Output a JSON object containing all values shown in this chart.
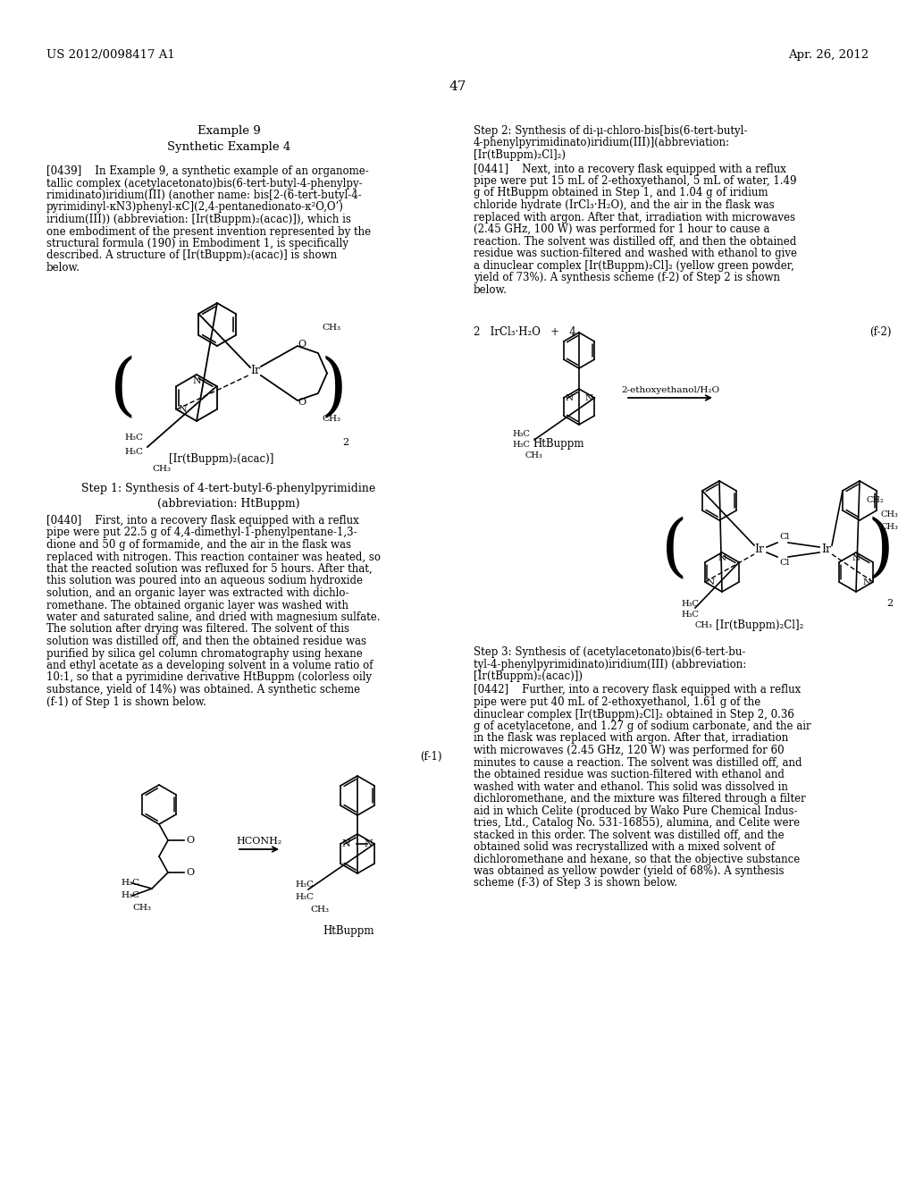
{
  "background_color": "#ffffff",
  "header_left": "US 2012/0098417 A1",
  "header_right": "Apr. 26, 2012",
  "page_number": "47",
  "left_para1_lines": [
    "[0439]    In Example 9, a synthetic example of an organome-",
    "tallic complex (acetylacetonato)bis(6-tert-butyl-4-phenylpy-",
    "rimidinato)iridium(III) (another name: bis[2-(6-tert-butyl-4-",
    "pyrimidinyl-κN3)phenyl-κC](2,4-pentanedionato-κ²O,O’)",
    "iridium(III)) (abbreviation: [Ir(tBuppm)₂(acac)]), which is",
    "one embodiment of the present invention represented by the",
    "structural formula (190) in Embodiment 1, is specifically",
    "described. A structure of [Ir(tBuppm)₂(acac)] is shown",
    "below."
  ],
  "right_step2_title_lines": [
    "Step 2: Synthesis of di-μ-chloro-bis[bis(6-tert-butyl-",
    "4-phenylpyrimidinato)iridium(III)](abbreviation:",
    "[Ir(tBuppm)₂Cl]₂)"
  ],
  "right_para1_lines": [
    "[0441]    Next, into a recovery flask equipped with a reflux",
    "pipe were put 15 mL of 2-ethoxyethanol, 5 mL of water, 1.49",
    "g of HtBuppm obtained in Step 1, and 1.04 g of iridium",
    "chloride hydrate (IrCl₃·H₂O), and the air in the flask was",
    "replaced with argon. After that, irradiation with microwaves",
    "(2.45 GHz, 100 W) was performed for 1 hour to cause a",
    "reaction. The solvent was distilled off, and then the obtained",
    "residue was suction-filtered and washed with ethanol to give",
    "a dinuclear complex [Ir(tBuppm)₂Cl]₂ (yellow green powder,",
    "yield of 73%). A synthesis scheme (f-2) of Step 2 is shown",
    "below."
  ],
  "left_step1_title_lines": [
    "Step 1: Synthesis of 4-tert-butyl-6-phenylpyrimidine",
    "(abbreviation: HtBuppm)"
  ],
  "left_para2_lines": [
    "[0440]    First, into a recovery flask equipped with a reflux",
    "pipe were put 22.5 g of 4,4-dimethyl-1-phenylpentane-1,3-",
    "dione and 50 g of formamide, and the air in the flask was",
    "replaced with nitrogen. This reaction container was heated, so",
    "that the reacted solution was refluxed for 5 hours. After that,",
    "this solution was poured into an aqueous sodium hydroxide",
    "solution, and an organic layer was extracted with dichlo-",
    "romethane. The obtained organic layer was washed with",
    "water and saturated saline, and dried with magnesium sulfate.",
    "The solution after drying was filtered. The solvent of this",
    "solution was distilled off, and then the obtained residue was",
    "purified by silica gel column chromatography using hexane",
    "and ethyl acetate as a developing solvent in a volume ratio of",
    "10:1, so that a pyrimidine derivative HtBuppm (colorless oily",
    "substance, yield of 14%) was obtained. A synthetic scheme",
    "(f-1) of Step 1 is shown below."
  ],
  "right_step3_title_lines": [
    "Step 3: Synthesis of (acetylacetonato)bis(6-tert-bu-",
    "tyl-4-phenylpyrimidinato)iridium(III) (abbreviation:",
    "[Ir(tBuppm)₂(acac)])"
  ],
  "right_para2_lines": [
    "[0442]    Further, into a recovery flask equipped with a reflux",
    "pipe were put 40 mL of 2-ethoxyethanol, 1.61 g of the",
    "dinuclear complex [Ir(tBuppm)₂Cl]₂ obtained in Step 2, 0.36",
    "g of acetylacetone, and 1.27 g of sodium carbonate, and the air",
    "in the flask was replaced with argon. After that, irradiation",
    "with microwaves (2.45 GHz, 120 W) was performed for 60",
    "minutes to cause a reaction. The solvent was distilled off, and",
    "the obtained residue was suction-filtered with ethanol and",
    "washed with water and ethanol. This solid was dissolved in",
    "dichloromethane, and the mixture was filtered through a filter",
    "aid in which Celite (produced by Wako Pure Chemical Indus-",
    "tries, Ltd., Catalog No. 531-16855), alumina, and Celite were",
    "stacked in this order. The solvent was distilled off, and the",
    "obtained solid was recrystallized with a mixed solvent of",
    "dichloromethane and hexane, so that the objective substance",
    "was obtained as yellow powder (yield of 68%). A synthesis",
    "scheme (f-3) of Step 3 is shown below."
  ]
}
